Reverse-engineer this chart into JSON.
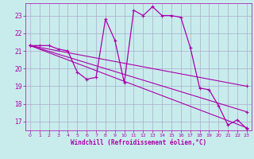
{
  "xlabel": "Windchill (Refroidissement éolien,°C)",
  "background_color": "#c8ecec",
  "line_color": "#aa00aa",
  "grid_color": "#aaaacc",
  "xlim": [
    -0.5,
    23.5
  ],
  "ylim": [
    16.5,
    23.7
  ],
  "yticks": [
    17,
    18,
    19,
    20,
    21,
    22,
    23
  ],
  "xticks": [
    0,
    1,
    2,
    3,
    4,
    5,
    6,
    7,
    8,
    9,
    10,
    11,
    12,
    13,
    14,
    15,
    16,
    17,
    18,
    19,
    20,
    21,
    22,
    23
  ],
  "series": [
    [
      0,
      21.3
    ],
    [
      1,
      21.3
    ],
    [
      2,
      21.3
    ],
    [
      3,
      21.1
    ],
    [
      4,
      21.0
    ],
    [
      5,
      19.8
    ],
    [
      6,
      19.4
    ],
    [
      7,
      19.5
    ],
    [
      8,
      22.8
    ],
    [
      9,
      21.6
    ],
    [
      10,
      19.2
    ],
    [
      11,
      23.3
    ],
    [
      12,
      23.0
    ],
    [
      13,
      23.5
    ],
    [
      14,
      23.0
    ],
    [
      15,
      23.0
    ],
    [
      16,
      22.9
    ],
    [
      17,
      21.2
    ],
    [
      18,
      18.9
    ],
    [
      19,
      18.8
    ],
    [
      20,
      17.9
    ],
    [
      21,
      16.8
    ],
    [
      22,
      17.1
    ],
    [
      23,
      16.6
    ]
  ],
  "linear1": [
    [
      0,
      21.3
    ],
    [
      23,
      19.0
    ]
  ],
  "linear2": [
    [
      0,
      21.3
    ],
    [
      23,
      17.55
    ]
  ],
  "linear3": [
    [
      0,
      21.3
    ],
    [
      23,
      16.65
    ]
  ]
}
